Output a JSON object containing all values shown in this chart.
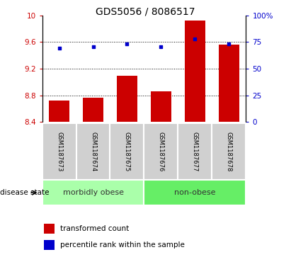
{
  "title": "GDS5056 / 8086517",
  "samples": [
    "GSM1187673",
    "GSM1187674",
    "GSM1187675",
    "GSM1187676",
    "GSM1187677",
    "GSM1187678"
  ],
  "bar_values": [
    8.72,
    8.77,
    9.1,
    8.86,
    9.92,
    9.56
  ],
  "scatter_values": [
    9.51,
    9.53,
    9.57,
    9.53,
    9.65,
    9.57
  ],
  "bar_bottom": 8.4,
  "ylim_left": [
    8.4,
    10.0
  ],
  "ylim_right": [
    0,
    100
  ],
  "yticks_left": [
    8.4,
    8.8,
    9.2,
    9.6,
    10.0
  ],
  "ytick_labels_left": [
    "8.4",
    "8.8",
    "9.2",
    "9.6",
    "10"
  ],
  "yticks_right": [
    0,
    25,
    50,
    75,
    100
  ],
  "ytick_labels_right": [
    "0",
    "25",
    "50",
    "75",
    "100%"
  ],
  "hlines": [
    8.8,
    9.2,
    9.6
  ],
  "bar_color": "#cc0000",
  "scatter_color": "#0000cc",
  "group_labels": [
    "morbidly obese",
    "non-obese"
  ],
  "group_colors": [
    "#aaffaa",
    "#66dd66"
  ],
  "disease_state_label": "disease state",
  "legend_bar_label": "transformed count",
  "legend_scatter_label": "percentile rank within the sample",
  "bar_width": 0.6,
  "figsize": [
    4.11,
    3.63
  ],
  "dpi": 100,
  "title_fontsize": 10,
  "tick_fontsize": 7.5,
  "sample_fontsize": 6.0,
  "group_fontsize": 8,
  "legend_fontsize": 7.5
}
